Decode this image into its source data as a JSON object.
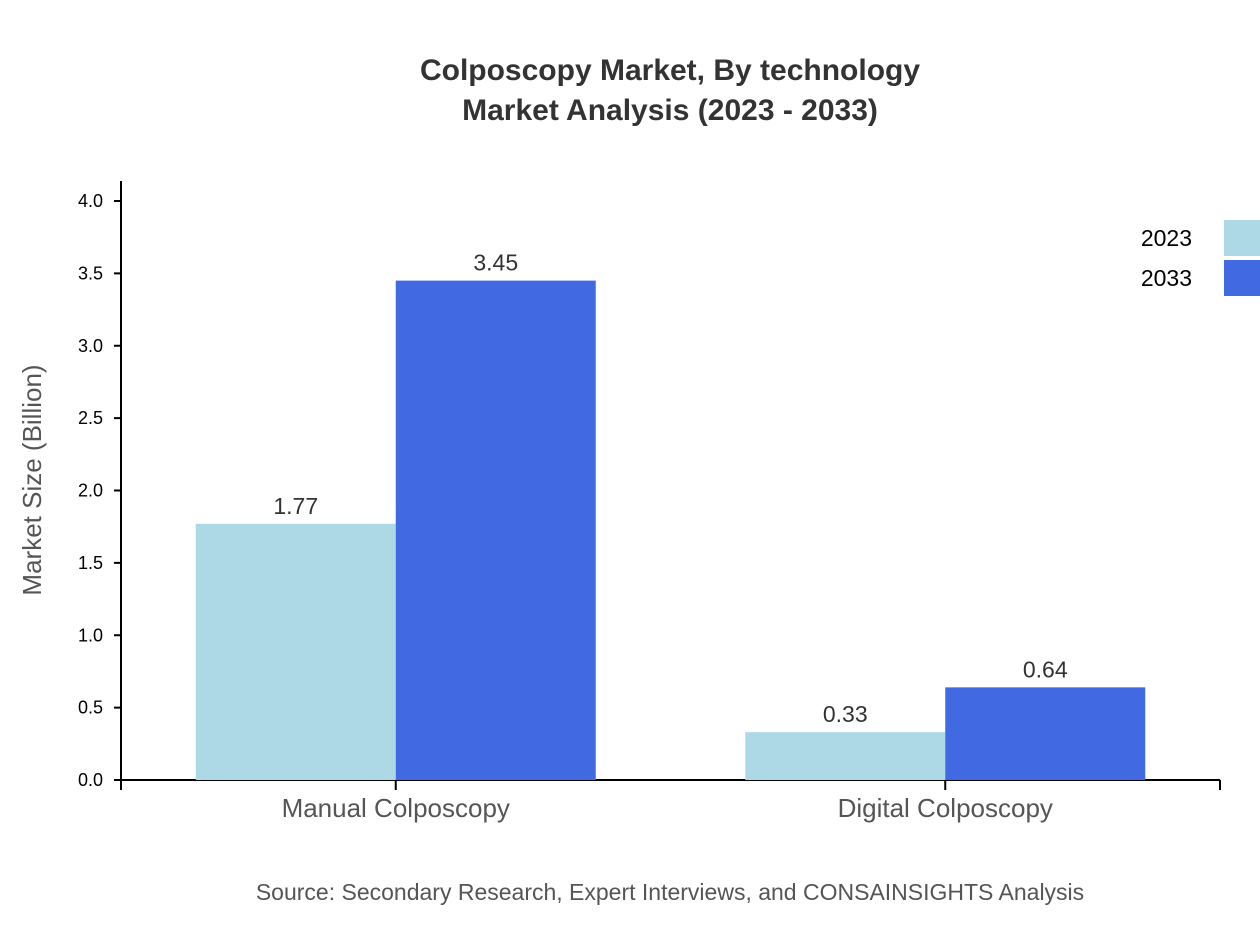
{
  "chart_data": {
    "type": "bar",
    "title": "Colposcopy Market, By technology",
    "subtitle": "Market Analysis (2023 - 2033)",
    "ylabel": "Market Size (Billion)",
    "xlabel": "",
    "categories": [
      "Manual Colposcopy",
      "Digital Colposcopy"
    ],
    "series": [
      {
        "name": "2023",
        "values": [
          1.77,
          0.33
        ],
        "color": "#ADD8E6"
      },
      {
        "name": "2033",
        "values": [
          3.45,
          0.64
        ],
        "color": "#4169E1"
      }
    ],
    "ylim": [
      0,
      4.0
    ],
    "yticks": [
      "0.0",
      "0.5",
      "1.0",
      "1.5",
      "2.0",
      "2.5",
      "3.0",
      "3.5",
      "4.0"
    ],
    "grid": false,
    "legend_position": "top-right",
    "source": "Source: Secondary Research, Expert Interviews, and CONSAINSIGHTS Analysis"
  }
}
